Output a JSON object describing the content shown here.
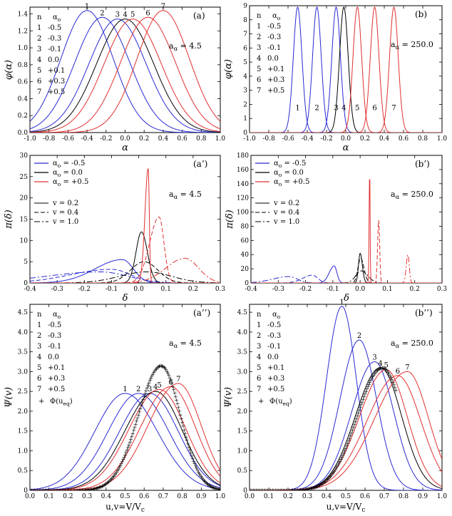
{
  "colors": {
    "blue": "#2a2ad4",
    "black": "#000000",
    "red": "#e03030",
    "magenta": "#e060e0"
  },
  "chart_data": [
    {
      "id": "a",
      "type": "line",
      "panel_label": "(a)",
      "xlabel": "α",
      "ylabel": "φ(α)",
      "xlim": [
        -1.0,
        1.0
      ],
      "ylim": [
        0.0,
        1.48
      ],
      "xticks": [
        "-1.0",
        "-0.8",
        "-0.6",
        "-0.4",
        "-0.2",
        "0.0",
        "0.2",
        "0.4",
        "0.6",
        "0.8",
        "1.0"
      ],
      "yticks": [
        "0.0",
        "0.2",
        "0.4",
        "0.6",
        "0.8",
        "1.0",
        "1.2",
        "1.4"
      ],
      "annotation": "a",
      "annotation_sub": "α",
      "annotation_value": " = 4.5",
      "legend_header": [
        "n",
        "α",
        "o"
      ],
      "legend": [
        {
          "n": "1",
          "alpha0": "-0.5"
        },
        {
          "n": "2",
          "alpha0": "-0.3"
        },
        {
          "n": "3",
          "alpha0": "-0.1"
        },
        {
          "n": "4",
          "alpha0": "0.0"
        },
        {
          "n": "5",
          "alpha0": "+0.1"
        },
        {
          "n": "6",
          "alpha0": "+0.3"
        },
        {
          "n": "7",
          "alpha0": "+0.5"
        }
      ],
      "series": [
        {
          "curve_label": "1",
          "color": "blue",
          "peak_x": -0.4,
          "peak_y": 1.44,
          "sigma": 0.275
        },
        {
          "curve_label": "2",
          "color": "blue",
          "peak_x": -0.24,
          "peak_y": 1.36,
          "sigma": 0.29
        },
        {
          "curve_label": "3",
          "color": "blue",
          "peak_x": -0.08,
          "peak_y": 1.34,
          "sigma": 0.3
        },
        {
          "curve_label": "4",
          "color": "black",
          "peak_x": 0.0,
          "peak_y": 1.34,
          "sigma": 0.3
        },
        {
          "curve_label": "5",
          "color": "red",
          "peak_x": 0.08,
          "peak_y": 1.34,
          "sigma": 0.3
        },
        {
          "curve_label": "6",
          "color": "red",
          "peak_x": 0.24,
          "peak_y": 1.36,
          "sigma": 0.29
        },
        {
          "curve_label": "7",
          "color": "red",
          "peak_x": 0.4,
          "peak_y": 1.44,
          "sigma": 0.275
        }
      ]
    },
    {
      "id": "b",
      "type": "line",
      "panel_label": "(b)",
      "xlabel": "α",
      "ylabel": "φ(α)",
      "xlim": [
        -1.0,
        1.0
      ],
      "ylim": [
        0,
        9
      ],
      "xticks": [
        "-1.0",
        "-0.8",
        "-0.6",
        "-0.4",
        "-0.2",
        "0.0",
        "0.2",
        "0.4",
        "0.6",
        "0.8",
        "1.0"
      ],
      "yticks": [
        "0",
        "1",
        "2",
        "3",
        "4",
        "5",
        "6",
        "7",
        "8",
        "9"
      ],
      "annotation": "a",
      "annotation_sub": "α",
      "annotation_value": " = 250.0",
      "legend_header": [
        "n",
        "α",
        "o"
      ],
      "legend": [
        {
          "n": "1",
          "alpha0": "-0.5"
        },
        {
          "n": "2",
          "alpha0": "-0.3"
        },
        {
          "n": "3",
          "alpha0": "-0.1"
        },
        {
          "n": "4",
          "alpha0": "0.0"
        },
        {
          "n": "5",
          "alpha0": "+0.1"
        },
        {
          "n": "6",
          "alpha0": "+0.3"
        },
        {
          "n": "7",
          "alpha0": "+0.5"
        }
      ],
      "series": [
        {
          "curve_label": "1",
          "color": "blue",
          "peak_x": -0.5,
          "peak_y": 8.9,
          "sigma": 0.045
        },
        {
          "curve_label": "2",
          "color": "blue",
          "peak_x": -0.3,
          "peak_y": 8.9,
          "sigma": 0.045
        },
        {
          "curve_label": "3",
          "color": "blue",
          "peak_x": -0.1,
          "peak_y": 8.9,
          "sigma": 0.045
        },
        {
          "curve_label": "4",
          "color": "black",
          "peak_x": -0.02,
          "peak_y": 8.9,
          "sigma": 0.045
        },
        {
          "curve_label": "5",
          "color": "red",
          "peak_x": 0.12,
          "peak_y": 8.9,
          "sigma": 0.045
        },
        {
          "curve_label": "6",
          "color": "red",
          "peak_x": 0.3,
          "peak_y": 8.9,
          "sigma": 0.045
        },
        {
          "curve_label": "7",
          "color": "red",
          "peak_x": 0.5,
          "peak_y": 8.9,
          "sigma": 0.045
        }
      ]
    },
    {
      "id": "a_prime",
      "type": "line",
      "panel_label": "(a’)",
      "xlabel": "δ",
      "ylabel": "π(δ)",
      "xlim": [
        -0.4,
        0.3
      ],
      "ylim": [
        0,
        30
      ],
      "xticks": [
        "-0.4",
        "-0.3",
        "-0.2",
        "-0.1",
        "0.0",
        "0.1",
        "0.2",
        "0.3"
      ],
      "yticks": [
        "0",
        "5",
        "10",
        "15",
        "20",
        "25",
        "30"
      ],
      "annotation": "a",
      "annotation_sub": "α",
      "annotation_value": " = 4.5",
      "legend_alpha": [
        {
          "prefix": "α",
          "sub": "o",
          "value": " = -0.5",
          "color": "blue"
        },
        {
          "prefix": "α",
          "sub": "o",
          "value": " = 0.0",
          "color": "black"
        },
        {
          "prefix": "α",
          "sub": "o",
          "value": " = +0.5",
          "color": "red"
        }
      ],
      "legend_v": [
        {
          "label": "v = 0.2",
          "dash": "solid"
        },
        {
          "label": "v = 0.4",
          "dash": "dashed"
        },
        {
          "label": "v = 1.0",
          "dash": "dashdot"
        }
      ],
      "series": [
        {
          "color": "blue",
          "dash": "solid",
          "peak_x": -0.06,
          "peak_y": 5.5,
          "sl": 0.1,
          "sr": 0.04
        },
        {
          "color": "blue",
          "dash": "dashed",
          "peak_x": -0.1,
          "peak_y": 3.2,
          "sl": 0.15,
          "sr": 0.07
        },
        {
          "color": "blue",
          "dash": "dashdot",
          "peak_x": -0.14,
          "peak_y": 2.6,
          "sl": 0.2,
          "sr": 0.1
        },
        {
          "color": "black",
          "dash": "solid",
          "peak_x": 0.01,
          "peak_y": 12.0,
          "sl": 0.02,
          "sr": 0.022
        },
        {
          "color": "black",
          "dash": "dashed",
          "peak_x": 0.02,
          "peak_y": 5.0,
          "sl": 0.05,
          "sr": 0.05
        },
        {
          "color": "black",
          "dash": "dashdot",
          "peak_x": 0.03,
          "peak_y": 2.6,
          "sl": 0.1,
          "sr": 0.09
        },
        {
          "color": "red",
          "dash": "solid",
          "peak_x": 0.035,
          "peak_y": 27.0,
          "sl": 0.012,
          "sr": 0.004
        },
        {
          "color": "red",
          "dash": "dashed",
          "peak_x": 0.075,
          "peak_y": 15.5,
          "sl": 0.035,
          "sr": 0.018
        },
        {
          "color": "red",
          "dash": "dashdot",
          "peak_x": 0.17,
          "peak_y": 5.8,
          "sl": 0.07,
          "sr": 0.05
        }
      ]
    },
    {
      "id": "b_prime",
      "type": "line",
      "panel_label": "(b’)",
      "xlabel": "δ",
      "ylabel": "π(δ)",
      "xlim": [
        -0.4,
        0.3
      ],
      "ylim": [
        0,
        180
      ],
      "xticks": [
        "-0.4",
        "-0.3",
        "-0.2",
        "-0.1",
        "0.0",
        "0.1",
        "0.2",
        "0.3"
      ],
      "yticks": [
        "0",
        "20",
        "40",
        "60",
        "80",
        "100",
        "120",
        "140",
        "160",
        "180"
      ],
      "annotation": "a",
      "annotation_sub": "α",
      "annotation_value": " = 250.0",
      "legend_alpha": [
        {
          "prefix": "α",
          "sub": "o",
          "value": " = -0.5",
          "color": "blue"
        },
        {
          "prefix": "α",
          "sub": "o",
          "value": " = 0.0",
          "color": "black"
        },
        {
          "prefix": "α",
          "sub": "o",
          "value": " = +0.5",
          "color": "red"
        }
      ],
      "legend_v": [
        {
          "label": "v = 0.2",
          "dash": "solid"
        },
        {
          "label": "v = 0.4",
          "dash": "dashed"
        },
        {
          "label": "v = 1.0",
          "dash": "dashdot"
        }
      ],
      "series": [
        {
          "color": "blue",
          "dash": "solid",
          "peak_x": -0.095,
          "peak_y": 24,
          "sl": 0.018,
          "sr": 0.01
        },
        {
          "color": "blue",
          "dash": "dashed",
          "peak_x": -0.175,
          "peak_y": 11,
          "sl": 0.035,
          "sr": 0.02
        },
        {
          "color": "blue",
          "dash": "dashdot",
          "peak_x": -0.26,
          "peak_y": 9,
          "sl": 0.06,
          "sr": 0.03
        },
        {
          "color": "black",
          "dash": "solid",
          "peak_x": 0.0,
          "peak_y": 42,
          "sl": 0.006,
          "sr": 0.008
        },
        {
          "color": "black",
          "dash": "dashed",
          "peak_x": 0.002,
          "peak_y": 35,
          "sl": 0.01,
          "sr": 0.012
        },
        {
          "color": "black",
          "dash": "dashdot",
          "peak_x": 0.004,
          "peak_y": 17,
          "sl": 0.02,
          "sr": 0.024
        },
        {
          "color": "red",
          "dash": "solid",
          "peak_x": 0.035,
          "peak_y": 165,
          "sl": 0.002,
          "sr": 0.0015
        },
        {
          "color": "red",
          "dash": "dashed",
          "peak_x": 0.068,
          "peak_y": 90,
          "sl": 0.004,
          "sr": 0.0035
        },
        {
          "color": "red",
          "dash": "dashdot",
          "peak_x": 0.175,
          "peak_y": 40,
          "sl": 0.006,
          "sr": 0.005
        }
      ]
    },
    {
      "id": "a_dprime",
      "type": "line",
      "panel_label": "(a’’)",
      "xlabel": "u,v=V/V",
      "xlabel_sub": "c",
      "ylabel": "Ψ(v)",
      "xlim": [
        0.0,
        1.0
      ],
      "ylim": [
        0,
        4.7
      ],
      "xticks": [
        "0.0",
        "0.1",
        "0.2",
        "0.3",
        "0.4",
        "0.5",
        "0.6",
        "0.7",
        "0.8",
        "0.9",
        "1.0"
      ],
      "yticks": [
        "0",
        "0.5",
        "1.0",
        "1.5",
        "2.0",
        "2.5",
        "3.0",
        "3.5",
        "4.0",
        "4.5"
      ],
      "annotation": "a",
      "annotation_sub": "α",
      "annotation_value": " = 4.5",
      "legend_header": [
        "n",
        "α",
        "o"
      ],
      "legend": [
        {
          "n": "1",
          "alpha0": "-0.5"
        },
        {
          "n": "2",
          "alpha0": "-0.3"
        },
        {
          "n": "3",
          "alpha0": "-0.1"
        },
        {
          "n": "4",
          "alpha0": "0.0"
        },
        {
          "n": "5",
          "alpha0": "+0.1"
        },
        {
          "n": "6",
          "alpha0": "+0.3"
        },
        {
          "n": "7",
          "alpha0": "+0.5"
        }
      ],
      "marker_legend": {
        "symbol": "+",
        "label": "Φ(u",
        "sub": "eq",
        "close": ")"
      },
      "series": [
        {
          "curve_label": "1",
          "color": "blue",
          "peak_x": 0.5,
          "peak_y": 2.45,
          "sl": 0.16,
          "sr": 0.17
        },
        {
          "curve_label": "2",
          "color": "blue",
          "peak_x": 0.57,
          "peak_y": 2.45,
          "sl": 0.16,
          "sr": 0.16
        },
        {
          "curve_label": "3",
          "color": "blue",
          "peak_x": 0.63,
          "peak_y": 2.45,
          "sl": 0.16,
          "sr": 0.15
        },
        {
          "curve_label": "4",
          "color": "black",
          "peak_x": 0.66,
          "peak_y": 2.5,
          "sl": 0.16,
          "sr": 0.14
        },
        {
          "curve_label": "5",
          "color": "red",
          "peak_x": 0.68,
          "peak_y": 2.55,
          "sl": 0.16,
          "sr": 0.14
        },
        {
          "curve_label": "6",
          "color": "red",
          "peak_x": 0.74,
          "peak_y": 2.62,
          "sl": 0.16,
          "sr": 0.13
        },
        {
          "curve_label": "7",
          "color": "red",
          "peak_x": 0.78,
          "peak_y": 2.7,
          "sl": 0.16,
          "sr": 0.12
        }
      ],
      "markers": {
        "color": "magenta",
        "peak_x": 0.69,
        "peak_y": 3.15,
        "sl": 0.12,
        "sr": 0.1,
        "x_from": 0.0,
        "x_to": 1.0,
        "step": 0.005
      }
    },
    {
      "id": "b_dprime",
      "type": "line",
      "panel_label": "(b’’)",
      "xlabel": "u,v=V/V",
      "xlabel_sub": "c",
      "ylabel": "Ψ(v)",
      "xlim": [
        0.0,
        1.0
      ],
      "ylim": [
        0,
        4.7
      ],
      "xticks": [
        "0.0",
        "0.1",
        "0.2",
        "0.3",
        "0.4",
        "0.5",
        "0.6",
        "0.7",
        "0.8",
        "0.9",
        "1.0"
      ],
      "yticks": [
        "0",
        "0.5",
        "1.0",
        "1.5",
        "2.0",
        "2.5",
        "3.0",
        "3.5",
        "4.0",
        "4.5"
      ],
      "annotation": "a",
      "annotation_sub": "α",
      "annotation_value": " = 250.0",
      "legend_header": [
        "n",
        "α",
        "o"
      ],
      "legend": [
        {
          "n": "1",
          "alpha0": "-0.5"
        },
        {
          "n": "2",
          "alpha0": "-0.3"
        },
        {
          "n": "3",
          "alpha0": "-0.1"
        },
        {
          "n": "4",
          "alpha0": "0.0"
        },
        {
          "n": "5",
          "alpha0": "+0.1"
        },
        {
          "n": "6",
          "alpha0": "+0.3"
        },
        {
          "n": "7",
          "alpha0": "+0.5"
        }
      ],
      "marker_legend": {
        "symbol": "+",
        "label": "Φ(u",
        "sub": "eq",
        "close": ")"
      },
      "series": [
        {
          "curve_label": "1",
          "color": "blue",
          "peak_x": 0.48,
          "peak_y": 4.65,
          "sl": 0.08,
          "sr": 0.075
        },
        {
          "curve_label": "2",
          "color": "blue",
          "peak_x": 0.57,
          "peak_y": 3.8,
          "sl": 0.1,
          "sr": 0.09
        },
        {
          "curve_label": "3",
          "color": "blue",
          "peak_x": 0.65,
          "peak_y": 3.25,
          "sl": 0.12,
          "sr": 0.1
        },
        {
          "curve_label": "4",
          "color": "black",
          "peak_x": 0.68,
          "peak_y": 3.1,
          "sl": 0.13,
          "sr": 0.11
        },
        {
          "curve_label": "5",
          "color": "red",
          "peak_x": 0.71,
          "peak_y": 3.05,
          "sl": 0.14,
          "sr": 0.11
        },
        {
          "curve_label": "6",
          "color": "red",
          "peak_x": 0.77,
          "peak_y": 2.9,
          "sl": 0.16,
          "sr": 0.12
        },
        {
          "curve_label": "7",
          "color": "red",
          "peak_x": 0.82,
          "peak_y": 3.0,
          "sl": 0.17,
          "sr": 0.11
        }
      ],
      "markers": {
        "color": "magenta",
        "peak_x": 0.69,
        "peak_y": 3.1,
        "sl": 0.13,
        "sr": 0.11,
        "x_from": 0.0,
        "x_to": 0.76,
        "step": 0.005
      }
    }
  ]
}
